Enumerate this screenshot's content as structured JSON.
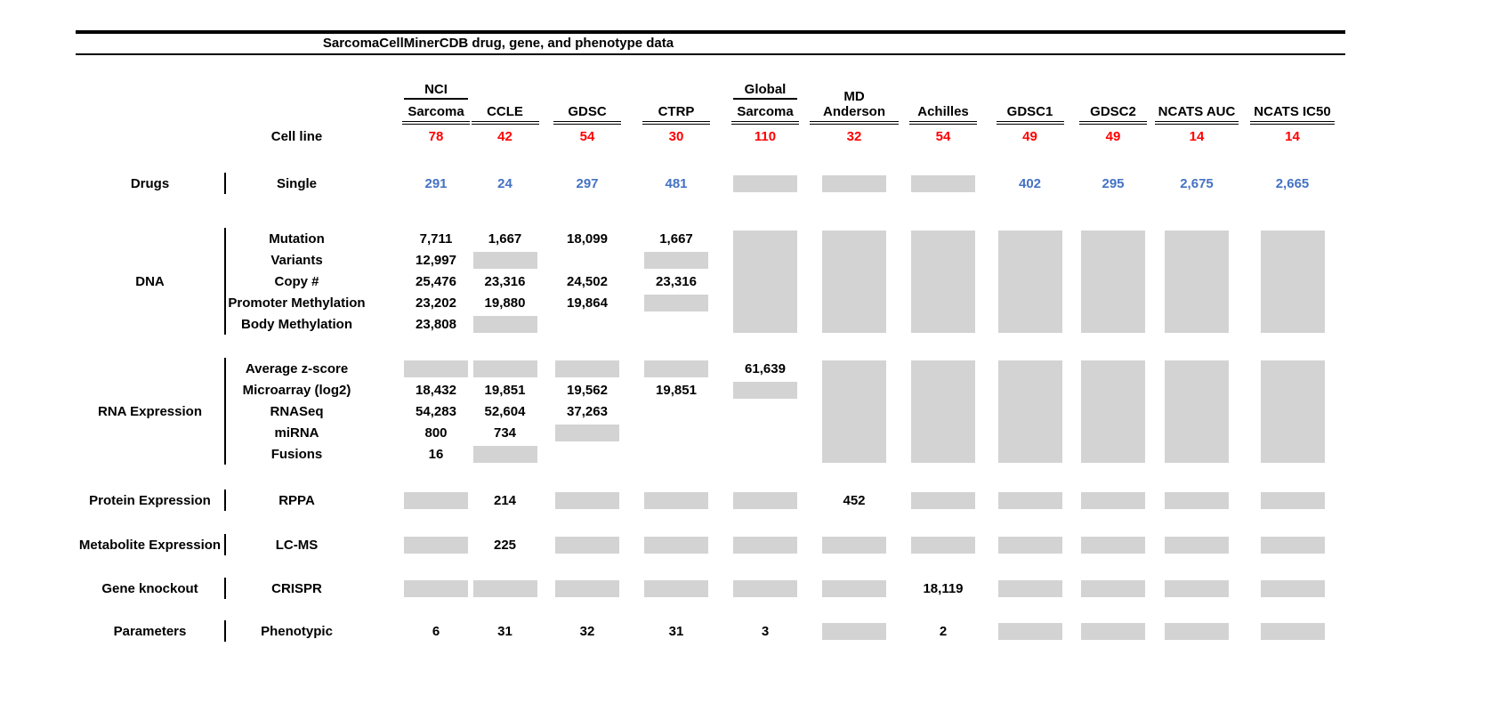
{
  "colors": {
    "red": "#FF0000",
    "blue": "#4472C4",
    "gray": "#D3D3D3"
  },
  "chart_data": {
    "type": "table",
    "title": "SarcomaCellMinerCDB drug, gene, and phenotype data",
    "no_data_marker": "GRAY",
    "columns": [
      {
        "group": "NCI",
        "label": "Sarcoma"
      },
      {
        "group": "",
        "label": "CCLE"
      },
      {
        "group": "",
        "label": "GDSC"
      },
      {
        "group": "",
        "label": "CTRP"
      },
      {
        "group": "Global",
        "label": "Sarcoma"
      },
      {
        "group": "",
        "label": "MD Anderson"
      },
      {
        "group": "",
        "label": "Achilles"
      },
      {
        "group": "",
        "label": "GDSC1"
      },
      {
        "group": "",
        "label": "GDSC2"
      },
      {
        "group": "",
        "label": "NCATS AUC"
      },
      {
        "group": "",
        "label": "NCATS IC50"
      }
    ],
    "cell_line_row": {
      "label": "Cell line",
      "color": "red",
      "cells": [
        "78",
        "42",
        "54",
        "30",
        "110",
        "32",
        "54",
        "49",
        "49",
        "14",
        "14"
      ]
    },
    "groups": [
      {
        "category": "Drugs",
        "rows": [
          {
            "label": "Single",
            "color": "blue",
            "cells": [
              "291",
              "24",
              "297",
              "481",
              "GRAY",
              "GRAY",
              "GRAY",
              "402",
              "295",
              "2,675",
              "2,665"
            ]
          }
        ]
      },
      {
        "category": "DNA",
        "rows": [
          {
            "label": "Mutation",
            "cells": [
              "7,711",
              "1,667",
              "18,099",
              "1,667",
              "GRAY",
              "GRAY",
              "GRAY",
              "GRAY",
              "GRAY",
              "GRAY",
              "GRAY"
            ]
          },
          {
            "label": "Variants",
            "cells": [
              "12,997",
              "GRAY",
              "",
              "GRAY",
              "GRAY",
              "GRAY",
              "GRAY",
              "GRAY",
              "GRAY",
              "GRAY",
              "GRAY"
            ]
          },
          {
            "label": "Copy #",
            "cells": [
              "25,476",
              "23,316",
              "24,502",
              "23,316",
              "GRAY",
              "GRAY",
              "GRAY",
              "GRAY",
              "GRAY",
              "GRAY",
              "GRAY"
            ]
          },
          {
            "label": "Promoter Methylation",
            "cells": [
              "23,202",
              "19,880",
              "19,864",
              "GRAY",
              "GRAY",
              "GRAY",
              "GRAY",
              "GRAY",
              "GRAY",
              "GRAY",
              "GRAY"
            ]
          },
          {
            "label": "Body Methylation",
            "cells": [
              "23,808",
              "GRAY",
              "",
              "",
              "GRAY",
              "GRAY",
              "GRAY",
              "GRAY",
              "GRAY",
              "GRAY",
              "GRAY"
            ]
          }
        ]
      },
      {
        "category": "RNA Expression",
        "rows": [
          {
            "label": "Average z-score",
            "cells": [
              "GRAY",
              "GRAY",
              "GRAY",
              "GRAY",
              "61,639",
              "GRAY",
              "GRAY",
              "GRAY",
              "GRAY",
              "GRAY",
              "GRAY"
            ]
          },
          {
            "label": "Microarray (log2)",
            "cells": [
              "18,432",
              "19,851",
              "19,562",
              "19,851",
              "GRAY",
              "GRAY",
              "GRAY",
              "GRAY",
              "GRAY",
              "GRAY",
              "GRAY"
            ]
          },
          {
            "label": "RNASeq",
            "cells": [
              "54,283",
              "52,604",
              "37,263",
              "",
              "",
              "GRAY",
              "GRAY",
              "GRAY",
              "GRAY",
              "GRAY",
              "GRAY"
            ]
          },
          {
            "label": "miRNA",
            "cells": [
              "800",
              "734",
              "GRAY",
              "",
              "",
              "GRAY",
              "GRAY",
              "GRAY",
              "GRAY",
              "GRAY",
              "GRAY"
            ]
          },
          {
            "label": "Fusions",
            "cells": [
              "16",
              "GRAY",
              "",
              "",
              "",
              "GRAY",
              "GRAY",
              "GRAY",
              "GRAY",
              "GRAY",
              "GRAY"
            ]
          }
        ]
      },
      {
        "category": "Protein Expression",
        "rows": [
          {
            "label": "RPPA",
            "cells": [
              "GRAY",
              "214",
              "GRAY",
              "GRAY",
              "GRAY",
              "452",
              "GRAY",
              "GRAY",
              "GRAY",
              "GRAY",
              "GRAY"
            ]
          }
        ]
      },
      {
        "category": "Metabolite Expression",
        "rows": [
          {
            "label": "LC-MS",
            "cells": [
              "GRAY",
              "225",
              "GRAY",
              "GRAY",
              "GRAY",
              "GRAY",
              "GRAY",
              "GRAY",
              "GRAY",
              "GRAY",
              "GRAY"
            ]
          }
        ]
      },
      {
        "category": "Gene knockout",
        "rows": [
          {
            "label": "CRISPR",
            "cells": [
              "GRAY",
              "GRAY",
              "GRAY",
              "GRAY",
              "GRAY",
              "GRAY",
              "18,119",
              "GRAY",
              "GRAY",
              "GRAY",
              "GRAY"
            ]
          }
        ]
      },
      {
        "category": "Parameters",
        "rows": [
          {
            "label": "Phenotypic",
            "cells": [
              "6",
              "31",
              "32",
              "31",
              "3",
              "GRAY",
              "2",
              "GRAY",
              "GRAY",
              "GRAY",
              "GRAY"
            ]
          }
        ]
      }
    ]
  }
}
